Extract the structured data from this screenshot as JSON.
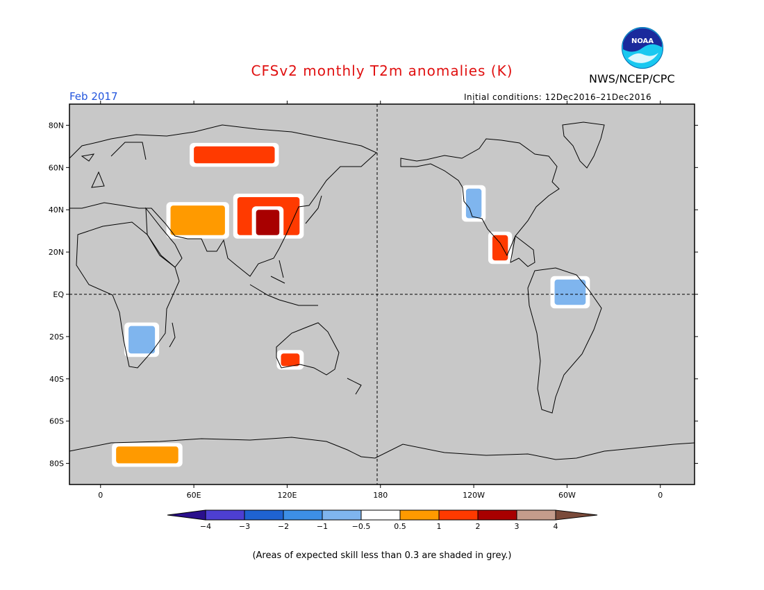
{
  "title": "CFSv2 monthly T2m anomalies (K)",
  "agency": "NWS/NCEP/CPC",
  "logo_text": "NOAA",
  "valid_month": "Feb 2017",
  "initial_conditions": "Initial conditions: 12Dec2016–21Dec2016",
  "footnote": "(Areas of expected skill less than 0.3 are shaded in grey.)",
  "map": {
    "projection": "cylindrical equidistant",
    "lon_range": [
      -20,
      382
    ],
    "lat_range": [
      -90,
      90
    ],
    "background": "#c8c8c8",
    "lat_ticks": [
      {
        "v": 80,
        "label": "80N"
      },
      {
        "v": 60,
        "label": "60N"
      },
      {
        "v": 40,
        "label": "40N"
      },
      {
        "v": 20,
        "label": "20N"
      },
      {
        "v": 0,
        "label": "EQ"
      },
      {
        "v": -20,
        "label": "20S"
      },
      {
        "v": -40,
        "label": "40S"
      },
      {
        "v": -60,
        "label": "60S"
      },
      {
        "v": -80,
        "label": "80S"
      }
    ],
    "lon_ticks": [
      {
        "v": 0,
        "label": "0"
      },
      {
        "v": 60,
        "label": "60E"
      },
      {
        "v": 120,
        "label": "120E"
      },
      {
        "v": 180,
        "label": "180"
      },
      {
        "v": 240,
        "label": "120W"
      },
      {
        "v": 300,
        "label": "60W"
      },
      {
        "v": 360,
        "label": "0"
      }
    ],
    "dashed_lines": [
      "equator",
      "dateline"
    ]
  },
  "colorbar": {
    "colors": [
      "#2a0f8c",
      "#4d3fd2",
      "#1f63d1",
      "#3d8fe6",
      "#7fb5ee",
      "#ffffff",
      "#ff9a00",
      "#ff3a00",
      "#a80000",
      "#c49c8c",
      "#7a4a3a"
    ],
    "labels": [
      "−4",
      "−3",
      "−2",
      "−1",
      "−0.5",
      "0.5",
      "1",
      "2",
      "3",
      "4"
    ]
  },
  "chart_data": {
    "type": "heatmap",
    "variable": "T2m anomaly",
    "units": "K",
    "anomaly_regions": [
      {
        "name": "Northern Siberia",
        "lon": [
          60,
          112
        ],
        "lat": [
          62,
          70
        ],
        "category": "1 to 2"
      },
      {
        "name": "Mongolia / Northern China",
        "lon": [
          88,
          128
        ],
        "lat": [
          28,
          46
        ],
        "category": "1 to 3"
      },
      {
        "name": "Tibetan Plateau / Central China",
        "lon": [
          100,
          115
        ],
        "lat": [
          28,
          40
        ],
        "category": "2 to 3"
      },
      {
        "name": "Central Asia / Iran",
        "lon": [
          45,
          80
        ],
        "lat": [
          28,
          42
        ],
        "category": "0.5 to 1"
      },
      {
        "name": "Western United States",
        "lon": [
          235,
          245
        ],
        "lat": [
          36,
          50
        ],
        "category": "-1 to -0.5"
      },
      {
        "name": "Mexico",
        "lon": [
          252,
          262
        ],
        "lat": [
          16,
          28
        ],
        "category": "1 to 2"
      },
      {
        "name": "Southern Africa",
        "lon": [
          18,
          35
        ],
        "lat": [
          -28,
          -15
        ],
        "category": "-1 to -0.5"
      },
      {
        "name": "Northern South America",
        "lon": [
          292,
          312
        ],
        "lat": [
          -5,
          7
        ],
        "category": "-1 to -0.5"
      },
      {
        "name": "Western Australia",
        "lon": [
          116,
          128
        ],
        "lat": [
          -34,
          -28
        ],
        "category": "1 to 2"
      },
      {
        "name": "Antarctic coast",
        "lon": [
          10,
          50
        ],
        "lat": [
          -80,
          -72
        ],
        "category": "0.5 to 1"
      }
    ]
  }
}
